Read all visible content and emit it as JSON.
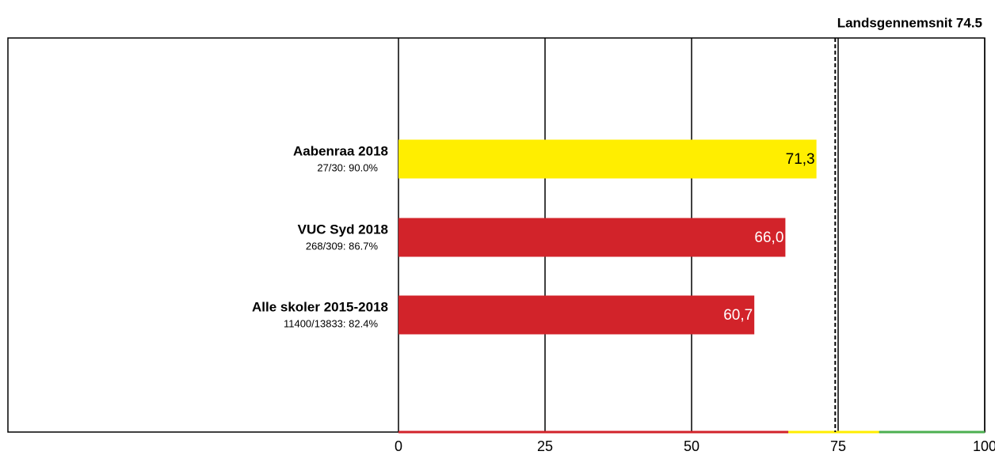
{
  "chart_data": {
    "type": "hbar",
    "title": "Landsgennemsnit 74.5",
    "categories": [
      "Aabenraa 2018",
      "VUC Syd 2018",
      "Alle skoler 2015-2018"
    ],
    "sublabels": [
      "27/30: 90.0%",
      "268/309: 86.7%",
      "11400/13833: 82.4%"
    ],
    "values": [
      71.3,
      66.0,
      60.7
    ],
    "value_labels": [
      "71,3",
      "66,0",
      "60,7"
    ],
    "colors": [
      "#ffee00",
      "#d2232a",
      "#d2232a"
    ],
    "value_label_colors": [
      "#000000",
      "#ffffff",
      "#ffffff"
    ],
    "reference_line": 74.5,
    "bands": [
      {
        "from": 0,
        "to": 66.5,
        "color": "#d2232a"
      },
      {
        "from": 66.5,
        "to": 82,
        "color": "#ffee00"
      },
      {
        "from": 82,
        "to": 100,
        "color": "#4caf50"
      }
    ],
    "xlim": [
      0,
      100
    ],
    "xticks": [
      0,
      25,
      50,
      75,
      100
    ],
    "grid": true
  }
}
